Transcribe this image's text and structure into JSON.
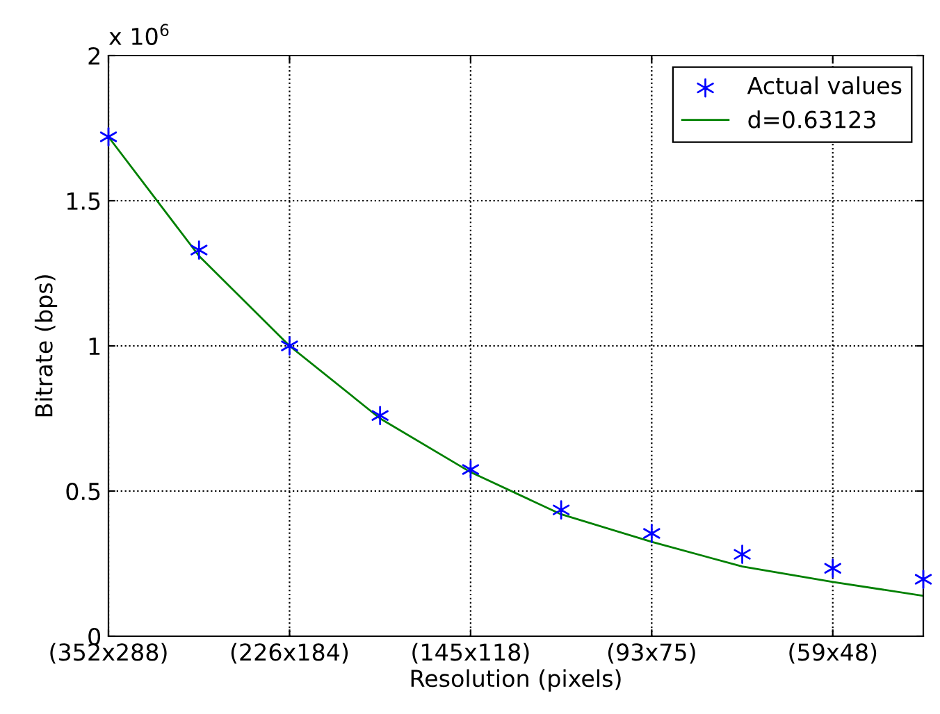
{
  "chart_data": {
    "type": "line",
    "xlabel": "Resolution (pixels)",
    "ylabel": "Bitrate (bps)",
    "categories": [
      "(352x288)",
      null,
      "(226x184)",
      null,
      "(145x118)",
      null,
      "(93x75)",
      null,
      "(59x48)",
      null
    ],
    "series": [
      {
        "name": "Actual values",
        "type": "scatter",
        "marker": "cross",
        "color": "#0000ff",
        "values": [
          1.72,
          1.33,
          1.0,
          0.76,
          0.574,
          0.435,
          0.354,
          0.282,
          0.234,
          0.196
        ]
      },
      {
        "name": "d=0.63123",
        "marker": "none",
        "color": "#008000",
        "values": [
          1.72,
          1.31,
          1.0,
          0.75,
          0.565,
          0.42,
          0.325,
          0.24,
          0.187,
          0.139
        ]
      }
    ],
    "ylim": [
      0,
      2
    ],
    "yticks": [
      0,
      0.5,
      1,
      1.5,
      2
    ],
    "annotations": [
      "x 10$^{6}$"
    ],
    "grid": true,
    "legend": "top right"
  }
}
